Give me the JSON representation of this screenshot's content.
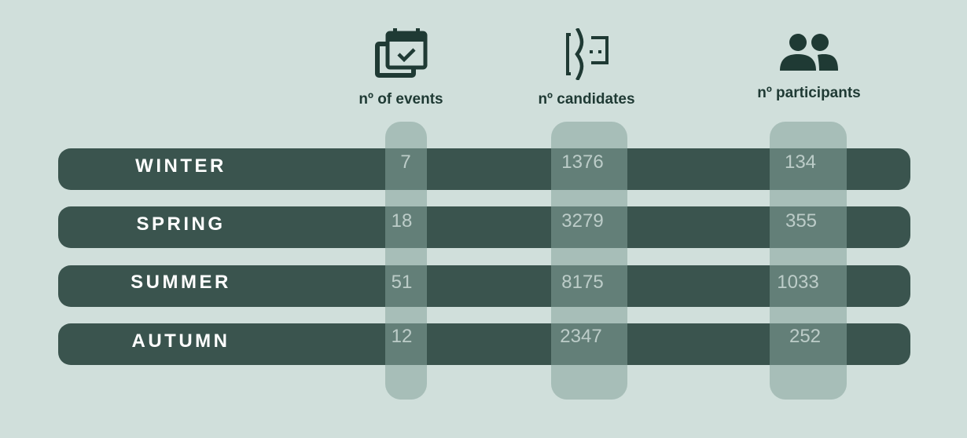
{
  "chart_data": {
    "type": "table",
    "columns": [
      {
        "label": "nº of events",
        "icon": "calendar-check-icon"
      },
      {
        "label": "nº candidates",
        "icon": "candidate-face-icon"
      },
      {
        "label": "nº participants",
        "icon": "people-group-icon"
      }
    ],
    "rows": [
      {
        "label": "WINTER",
        "values": [
          "7",
          "1376",
          "134"
        ]
      },
      {
        "label": "SPRING",
        "values": [
          "18",
          "3279",
          "355"
        ]
      },
      {
        "label": "SUMMER",
        "values": [
          "51",
          "8175",
          "1033"
        ]
      },
      {
        "label": "AUTUMN",
        "values": [
          "12",
          "2347",
          "252"
        ]
      }
    ]
  },
  "colors": {
    "background": "#d0dfdb",
    "row_bar": "#3a544e",
    "column_pill": "#85a29a",
    "icon": "#1f3a34",
    "value_text": "#ffffff"
  }
}
